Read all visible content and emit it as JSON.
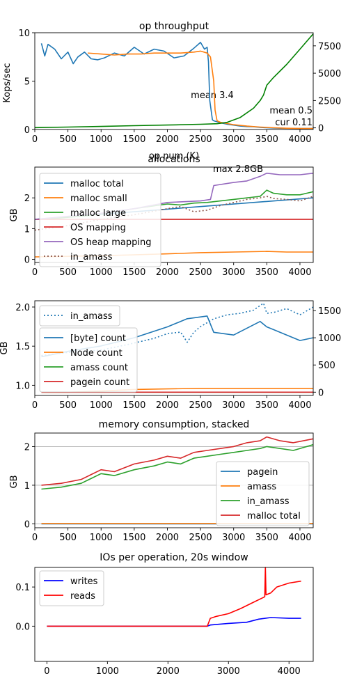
{
  "colors": {
    "c0": "#1f77b4",
    "c1": "#ff7f0e",
    "c2": "#2ca02c",
    "c3": "#d62728",
    "c4": "#9467bd",
    "c5": "#8c564b",
    "green": "#008000",
    "blue": "#0000ff",
    "red": "#ff0000"
  },
  "chart_data": [
    {
      "type": "line",
      "title": "op throughput",
      "xlabel": "op num (K)",
      "ylabel": "Kops/sec",
      "xlim": [
        0,
        4200
      ],
      "ylim": [
        0,
        10
      ],
      "y2lim": [
        -150,
        8700
      ],
      "x_ticks": [
        0,
        500,
        1000,
        1500,
        2000,
        2500,
        3000,
        3500,
        4000
      ],
      "y_ticks": [
        0,
        5,
        10
      ],
      "y2_ticks": [
        0,
        2500,
        5000,
        7500
      ],
      "annotations": [
        "mean 3.4",
        "mean 0.5",
        "cur 0.11"
      ],
      "series": [
        {
          "axis": "left",
          "color": "c0",
          "x": [
            100,
            150,
            200,
            300,
            400,
            500,
            580,
            650,
            750,
            850,
            950,
            1050,
            1200,
            1350,
            1500,
            1650,
            1800,
            1950,
            2100,
            2250,
            2400,
            2500,
            2560,
            2600,
            2620,
            2640,
            2680,
            2700,
            2750,
            2800,
            2900,
            3000,
            3100,
            3200,
            3300,
            3400,
            3500,
            3600,
            3700,
            3800,
            3900,
            4000,
            4100,
            4200
          ],
          "y": [
            8.9,
            7.6,
            8.8,
            8.3,
            7.3,
            8.0,
            6.8,
            7.5,
            8.0,
            7.3,
            7.2,
            7.4,
            7.9,
            7.6,
            8.5,
            7.8,
            8.3,
            8.1,
            7.4,
            7.6,
            8.4,
            9.0,
            8.3,
            8.5,
            7.0,
            3.0,
            1.0,
            0.9,
            0.8,
            0.7,
            0.55,
            0.45,
            0.35,
            0.3,
            0.28,
            0.22,
            0.18,
            0.15,
            0.13,
            0.12,
            0.11,
            0.1,
            0.1,
            0.11
          ]
        },
        {
          "axis": "left",
          "color": "c1",
          "x": [
            800,
            1000,
            1200,
            1400,
            1600,
            1800,
            2000,
            2200,
            2400,
            2500,
            2600,
            2650,
            2700,
            2720,
            2750,
            2800,
            3000,
            3200,
            3400,
            3600,
            3800,
            4000,
            4200
          ],
          "y": [
            7.9,
            7.8,
            7.7,
            7.8,
            7.8,
            7.9,
            7.9,
            7.9,
            8.0,
            8.1,
            7.9,
            7.5,
            5.0,
            2.0,
            0.9,
            0.75,
            0.5,
            0.35,
            0.25,
            0.18,
            0.13,
            0.11,
            0.11
          ]
        },
        {
          "axis": "right",
          "color": "green",
          "x": [
            0,
            500,
            1000,
            1500,
            2000,
            2500,
            2750,
            2900,
            3100,
            3300,
            3400,
            3450,
            3500,
            3600,
            3800,
            4000,
            4200
          ],
          "y": [
            20,
            70,
            130,
            200,
            260,
            330,
            380,
            500,
            950,
            1800,
            2500,
            3000,
            3900,
            4600,
            5800,
            7200,
            8600
          ]
        }
      ]
    },
    {
      "type": "line",
      "title": "allocations",
      "ylabel": "GB",
      "xlim": [
        0,
        4200
      ],
      "ylim": [
        -0.1,
        3.0
      ],
      "x_ticks": [
        0,
        500,
        1000,
        1500,
        2000,
        2500,
        3000,
        3500,
        4000
      ],
      "y_ticks": [
        0,
        1,
        2
      ],
      "annotations": [
        "max 2.8GB"
      ],
      "series": [
        {
          "name": "malloc total",
          "color": "c0",
          "style": "solid",
          "x": [
            0,
            4200
          ],
          "y": [
            1.3,
            2.0
          ]
        },
        {
          "name": "malloc small",
          "color": "c1",
          "style": "solid",
          "x": [
            0,
            500,
            1000,
            1500,
            2000,
            2500,
            3000,
            3500,
            3800,
            4200
          ],
          "y": [
            0.08,
            0.1,
            0.12,
            0.15,
            0.18,
            0.22,
            0.24,
            0.26,
            0.24,
            0.24
          ]
        },
        {
          "name": "malloc large",
          "color": "c2",
          "style": "solid",
          "x": [
            0,
            400,
            800,
            1200,
            1600,
            2000,
            2200,
            2400,
            2600,
            2800,
            3000,
            3200,
            3400,
            3500,
            3600,
            3800,
            4000,
            4200
          ],
          "y": [
            1.3,
            1.35,
            1.42,
            1.55,
            1.68,
            1.8,
            1.77,
            1.83,
            1.85,
            1.9,
            1.95,
            2.0,
            2.05,
            2.25,
            2.15,
            2.1,
            2.1,
            2.2
          ]
        },
        {
          "name": "OS mapping",
          "color": "c3",
          "style": "solid",
          "x": [
            0,
            4200
          ],
          "y": [
            1.3,
            1.3
          ]
        },
        {
          "name": "OS heap mapping",
          "color": "c4",
          "style": "solid",
          "x": [
            0,
            500,
            1000,
            1500,
            2000,
            2500,
            2650,
            2700,
            3000,
            3200,
            3400,
            3500,
            3700,
            3800,
            4000,
            4200
          ],
          "y": [
            1.3,
            1.4,
            1.5,
            1.65,
            1.85,
            1.9,
            1.95,
            2.4,
            2.5,
            2.55,
            2.7,
            2.8,
            2.75,
            2.75,
            2.75,
            2.8
          ]
        },
        {
          "name": "in_amass",
          "color": "c5",
          "style": "dotted",
          "x": [
            0,
            500,
            1000,
            1500,
            2000,
            2200,
            2400,
            2600,
            2800,
            3000,
            3200,
            3400,
            3500,
            3600,
            3800,
            4000,
            4200
          ],
          "y": [
            0.95,
            1.1,
            1.3,
            1.45,
            1.65,
            1.72,
            1.55,
            1.6,
            1.75,
            1.85,
            1.95,
            2.0,
            2.05,
            1.98,
            1.95,
            1.9,
            2.05
          ]
        }
      ]
    },
    {
      "type": "line",
      "ylabel": "GB",
      "xlim": [
        0,
        4200
      ],
      "ylim": [
        0.87,
        2.08
      ],
      "y2lim": [
        -60,
        1680
      ],
      "x_ticks": [
        0,
        500,
        1000,
        1500,
        2000,
        2500,
        3000,
        3500,
        4000
      ],
      "y_ticks": [
        1.0,
        1.5,
        2.0
      ],
      "y2_ticks": [
        0,
        500,
        1000,
        1500
      ],
      "series": [
        {
          "name": "in_amass",
          "axis": "left",
          "color": "c0",
          "style": "dotted",
          "x": [
            100,
            500,
            1000,
            1400,
            1800,
            2000,
            2200,
            2300,
            2400,
            2500,
            2700,
            2900,
            3100,
            3300,
            3450,
            3500,
            3600,
            3800,
            4000,
            4200
          ],
          "y": [
            1.38,
            1.42,
            1.45,
            1.52,
            1.6,
            1.66,
            1.68,
            1.55,
            1.68,
            1.75,
            1.85,
            1.9,
            1.92,
            1.96,
            2.05,
            1.92,
            1.93,
            1.98,
            1.9,
            2.0
          ]
        },
        {
          "name": "[byte] count",
          "axis": "right",
          "color": "c0",
          "style": "solid",
          "x": [
            100,
            500,
            1000,
            1500,
            2000,
            2300,
            2600,
            2700,
            3000,
            3400,
            3500,
            3600,
            3800,
            4000,
            4200
          ],
          "y": [
            650,
            750,
            850,
            1000,
            1200,
            1350,
            1400,
            1100,
            1050,
            1300,
            1200,
            1150,
            1050,
            950,
            1000
          ]
        },
        {
          "name": "Node count",
          "axis": "right",
          "color": "c1",
          "style": "solid",
          "x": [
            100,
            500,
            1000,
            1500,
            2000,
            2500,
            3000,
            3500,
            4200
          ],
          "y": [
            0,
            0,
            20,
            50,
            60,
            70,
            70,
            70,
            70
          ]
        },
        {
          "name": "amass count",
          "axis": "right",
          "color": "c2",
          "style": "solid",
          "x": [
            100,
            4200
          ],
          "y": [
            0,
            0
          ]
        },
        {
          "name": "pagein count",
          "axis": "right",
          "color": "c3",
          "style": "solid",
          "x": [
            100,
            4200
          ],
          "y": [
            0,
            0
          ]
        }
      ]
    },
    {
      "type": "line",
      "title": "memory consumption, stacked",
      "ylabel": "GB",
      "xlim": [
        0,
        4200
      ],
      "ylim": [
        -0.1,
        2.35
      ],
      "x_ticks": [
        0,
        500,
        1000,
        1500,
        2000,
        2500,
        3000,
        3500,
        4000
      ],
      "y_ticks": [
        0,
        1,
        2
      ],
      "series": [
        {
          "name": "pagein",
          "color": "c0",
          "x": [
            100,
            4200
          ],
          "y": [
            0,
            0
          ]
        },
        {
          "name": "amass",
          "color": "c1",
          "x": [
            100,
            4200
          ],
          "y": [
            0.01,
            0.01
          ]
        },
        {
          "name": "in_amass",
          "color": "c2",
          "x": [
            100,
            400,
            700,
            1000,
            1200,
            1500,
            1800,
            2000,
            2200,
            2400,
            2600,
            2800,
            3000,
            3200,
            3400,
            3500,
            3700,
            3900,
            4200
          ],
          "y": [
            0.9,
            0.95,
            1.05,
            1.3,
            1.25,
            1.4,
            1.5,
            1.6,
            1.55,
            1.7,
            1.75,
            1.8,
            1.85,
            1.9,
            1.95,
            2.0,
            1.95,
            1.9,
            2.05
          ]
        },
        {
          "name": "malloc total",
          "color": "c3",
          "x": [
            100,
            400,
            700,
            1000,
            1200,
            1500,
            1800,
            2000,
            2200,
            2400,
            2600,
            2800,
            3000,
            3200,
            3400,
            3500,
            3700,
            3900,
            4200
          ],
          "y": [
            1.0,
            1.05,
            1.15,
            1.4,
            1.35,
            1.55,
            1.65,
            1.75,
            1.7,
            1.85,
            1.9,
            1.95,
            2.0,
            2.1,
            2.15,
            2.25,
            2.15,
            2.1,
            2.2
          ]
        }
      ]
    },
    {
      "type": "line",
      "title": "IOs per operation, 20s window",
      "xlim": [
        -200,
        4400
      ],
      "ylim": [
        -0.09,
        0.15
      ],
      "x_ticks": [
        0,
        1000,
        2000,
        3000,
        4000
      ],
      "y_ticks": [
        0.0,
        0.1
      ],
      "series": [
        {
          "name": "writes",
          "color": "blue",
          "x": [
            0,
            2650,
            2700,
            3000,
            3300,
            3500,
            3700,
            4000,
            4200
          ],
          "y": [
            0,
            0,
            0.003,
            0.007,
            0.01,
            0.018,
            0.022,
            0.02,
            0.02
          ]
        },
        {
          "name": "reads",
          "color": "red",
          "x": [
            0,
            2650,
            2700,
            2800,
            3000,
            3200,
            3400,
            3600,
            3610,
            3620,
            3700,
            3800,
            4000,
            4200
          ],
          "y": [
            0,
            0,
            0.02,
            0.025,
            0.032,
            0.045,
            0.06,
            0.075,
            0.15,
            0.08,
            0.085,
            0.1,
            0.11,
            0.115
          ]
        }
      ]
    }
  ]
}
